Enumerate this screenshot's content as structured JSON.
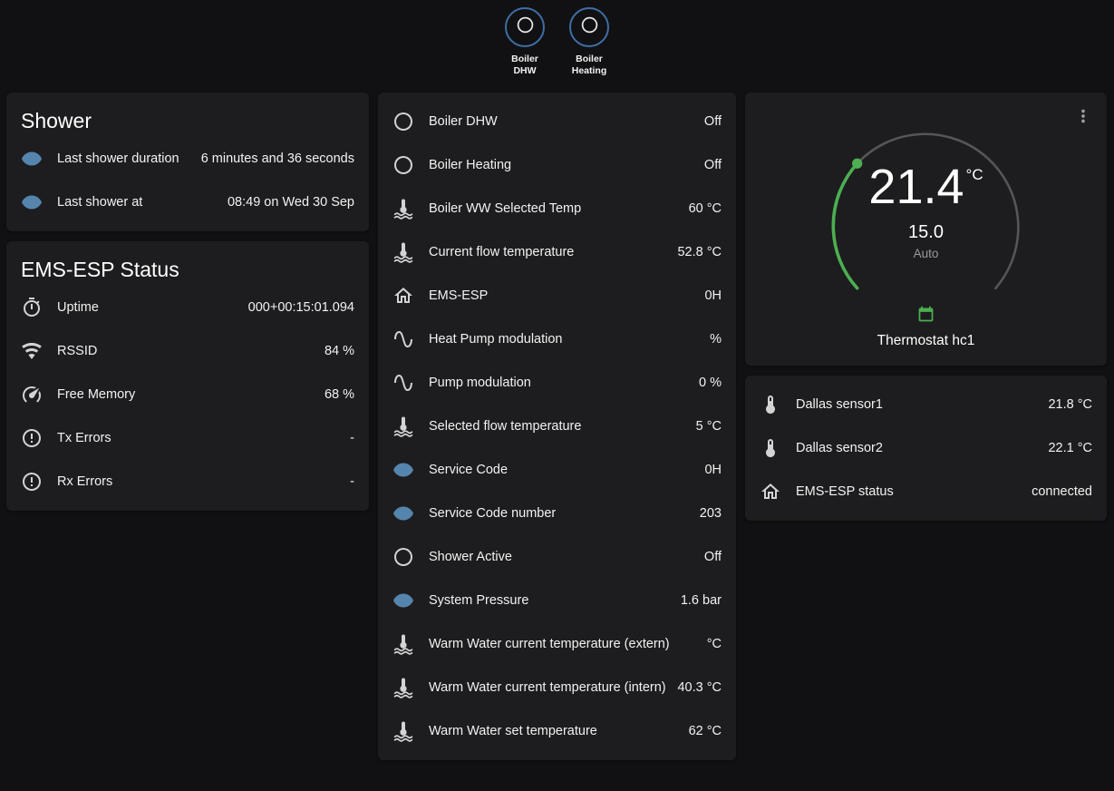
{
  "colors": {
    "background": "#111113",
    "card": "#1d1d1f",
    "text_primary": "#f2f2f2",
    "text_secondary": "#9b9b9b",
    "badge_ring": "#3f6ea5",
    "icon_blue": "#5585ad",
    "icon_gray": "#d3d3d3",
    "gauge_green": "#4caf50",
    "gauge_track": "#565656"
  },
  "header": {
    "buttons": [
      {
        "icon": "radio-blank",
        "line1": "Boiler",
        "line2": "DHW"
      },
      {
        "icon": "radio-blank",
        "line1": "Boiler",
        "line2": "Heating"
      }
    ]
  },
  "shower_card": {
    "title": "Shower",
    "rows": [
      {
        "icon": "eye",
        "label": "Last shower duration",
        "value": "6 minutes and 36 seconds"
      },
      {
        "icon": "eye",
        "label": "Last shower at",
        "value": "08:49 on Wed 30 Sep"
      }
    ]
  },
  "status_card": {
    "title": "EMS-ESP Status",
    "rows": [
      {
        "icon": "timer",
        "label": "Uptime",
        "value": "000+00:15:01.094"
      },
      {
        "icon": "wifi",
        "label": "RSSID",
        "value": "84 %"
      },
      {
        "icon": "gauge",
        "label": "Free Memory",
        "value": "68 %"
      },
      {
        "icon": "alert-circle",
        "label": "Tx Errors",
        "value": "-"
      },
      {
        "icon": "alert-circle",
        "label": "Rx Errors",
        "value": "-"
      }
    ]
  },
  "entities_card": {
    "rows": [
      {
        "icon": "radio-blank",
        "label": "Boiler DHW",
        "value": "Off"
      },
      {
        "icon": "radio-blank",
        "label": "Boiler Heating",
        "value": "Off"
      },
      {
        "icon": "thermometer-water",
        "label": "Boiler WW Selected Temp",
        "value": "60 °C"
      },
      {
        "icon": "thermometer-water",
        "label": "Current flow temperature",
        "value": "52.8 °C"
      },
      {
        "icon": "home",
        "label": "EMS-ESP",
        "value": "0H"
      },
      {
        "icon": "sine-wave",
        "label": "Heat Pump modulation",
        "value": "%"
      },
      {
        "icon": "sine-wave",
        "label": "Pump modulation",
        "value": "0 %"
      },
      {
        "icon": "thermometer-water",
        "label": "Selected flow temperature",
        "value": "5 °C"
      },
      {
        "icon": "eye",
        "label": "Service Code",
        "value": "0H"
      },
      {
        "icon": "eye",
        "label": "Service Code number",
        "value": "203"
      },
      {
        "icon": "radio-blank",
        "label": "Shower Active",
        "value": "Off"
      },
      {
        "icon": "eye",
        "label": "System Pressure",
        "value": "1.6 bar"
      },
      {
        "icon": "thermometer-water",
        "label": "Warm Water current temperature (extern)",
        "value": "°C"
      },
      {
        "icon": "thermometer-water",
        "label": "Warm Water current temperature (intern)",
        "value": "40.3 °C"
      },
      {
        "icon": "thermometer-water",
        "label": "Warm Water set temperature",
        "value": "62 °C"
      }
    ]
  },
  "thermostat_card": {
    "current_temperature": "21.4",
    "unit": "°C",
    "setpoint": "15.0",
    "mode": "Auto",
    "name": "Thermostat hc1",
    "preset_icon": "calendar-sync",
    "menu_icon": "dots-vertical"
  },
  "sensors_card": {
    "rows": [
      {
        "icon": "thermometer",
        "label": "Dallas sensor1",
        "value": "21.8 °C"
      },
      {
        "icon": "thermometer",
        "label": "Dallas sensor2",
        "value": "22.1 °C"
      },
      {
        "icon": "home",
        "label": "EMS-ESP status",
        "value": "connected"
      }
    ]
  }
}
